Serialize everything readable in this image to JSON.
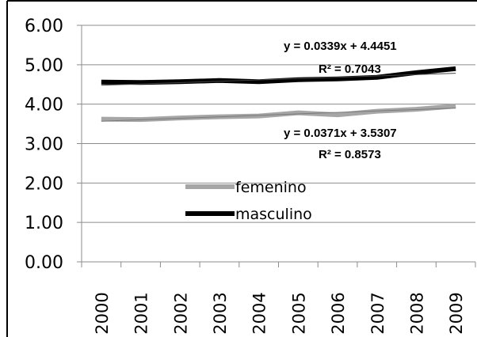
{
  "chart_data": {
    "type": "line",
    "title": "",
    "xlabel": "",
    "ylabel": "",
    "categories": [
      "2000",
      "2001",
      "2002",
      "2003",
      "2004",
      "2005",
      "2006",
      "2007",
      "2008",
      "2009"
    ],
    "y_ticks": [
      "0.00",
      "1.00",
      "2.00",
      "3.00",
      "4.00",
      "5.00",
      "6.00"
    ],
    "ylim": [
      0,
      6
    ],
    "grid": "horizontal",
    "legend_placement": "center-left",
    "series": [
      {
        "name": "femenino",
        "color": "#a6a6a6",
        "values": [
          3.62,
          3.61,
          3.65,
          3.68,
          3.7,
          3.78,
          3.73,
          3.82,
          3.87,
          3.95
        ],
        "trendline": {
          "equation": "y = 0.0371x + 3.5307",
          "r_squared": "R² = 0.8573",
          "slope": 0.0371,
          "intercept": 3.5307
        }
      },
      {
        "name": "masculino",
        "color": "#000000",
        "values": [
          4.56,
          4.55,
          4.57,
          4.6,
          4.57,
          4.62,
          4.64,
          4.68,
          4.8,
          4.9
        ],
        "trendline": {
          "equation": "y = 0.0339x + 4.4451",
          "r_squared": "R² = 0.7043",
          "slope": 0.0339,
          "intercept": 4.4451
        }
      }
    ]
  }
}
